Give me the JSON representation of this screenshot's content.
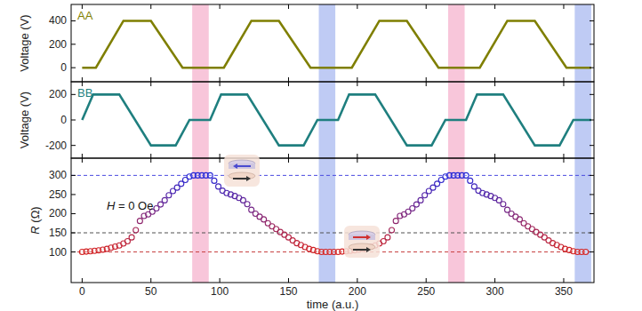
{
  "chart_data": [
    {
      "type": "line",
      "ylabel": "Voltage (V)",
      "annotations": [
        "AA"
      ],
      "tick_labels": "y",
      "xlim": [
        -8,
        372
      ],
      "xticks": [
        0,
        50,
        100,
        150,
        200,
        250,
        300,
        350
      ],
      "ylim": [
        -120,
        540
      ],
      "yticks": [
        0,
        200,
        400
      ],
      "series": [
        {
          "name": "AA",
          "color": "#7f7f00",
          "x": [
            0,
            10,
            30,
            50,
            73,
            103,
            123,
            143,
            166,
            196,
            216,
            236,
            259,
            289,
            309,
            329,
            352,
            370
          ],
          "values": [
            0,
            0,
            400,
            400,
            0,
            0,
            400,
            400,
            0,
            0,
            400,
            400,
            0,
            0,
            400,
            400,
            0,
            0
          ]
        }
      ]
    },
    {
      "type": "line",
      "ylabel": "Voltage (V)",
      "annotations": [
        "BB"
      ],
      "tick_labels": "y",
      "xlim": [
        -8,
        372
      ],
      "xticks": [
        0,
        50,
        100,
        150,
        200,
        250,
        300,
        350
      ],
      "ylim": [
        -300,
        300
      ],
      "yticks": [
        -200,
        0,
        200
      ],
      "series": [
        {
          "name": "BB",
          "color": "#1f7f7f",
          "x": [
            0,
            8,
            27,
            50,
            68,
            78,
            93,
            101,
            120,
            143,
            161,
            171,
            186,
            194,
            213,
            236,
            254,
            264,
            279,
            287,
            306,
            329,
            347,
            357,
            370
          ],
          "values": [
            0,
            200,
            200,
            -200,
            -200,
            0,
            0,
            200,
            200,
            -200,
            -200,
            0,
            0,
            200,
            200,
            -200,
            -200,
            0,
            0,
            200,
            200,
            -200,
            -200,
            0,
            0
          ]
        }
      ]
    },
    {
      "type": "scatter",
      "xlabel": "time (a.u.)",
      "ylabel": "R (Ω)",
      "annotations": [
        "H = 0 Oe"
      ],
      "xlim": [
        -8,
        372
      ],
      "xticks": [
        0,
        50,
        100,
        150,
        200,
        250,
        300,
        350
      ],
      "ylim": [
        20,
        345
      ],
      "yticks": [
        100,
        150,
        200,
        250,
        300
      ],
      "hlines": [
        {
          "value": 300,
          "color": "#4a4ae0"
        },
        {
          "value": 150,
          "color": "#505050"
        },
        {
          "value": 100,
          "color": "#c84040"
        }
      ],
      "bands": [
        {
          "x0": 80,
          "x1": 92,
          "color": "#f7bcd3"
        },
        {
          "x0": 172,
          "x1": 184,
          "color": "#b4c2f2"
        },
        {
          "x0": 266,
          "x1": 278,
          "color": "#f7bcd3"
        },
        {
          "x0": 358,
          "x1": 370,
          "color": "#b4c2f2"
        }
      ],
      "series": [
        {
          "name": "R",
          "marker": "circle",
          "x": [
            0,
            3,
            6,
            9,
            12,
            15,
            18,
            21,
            24,
            27,
            30,
            33,
            36,
            39,
            42,
            45,
            48,
            51,
            54,
            57,
            60,
            63,
            66,
            69,
            72,
            75,
            78,
            81,
            84,
            87,
            90,
            93,
            96,
            99,
            102,
            105,
            108,
            111,
            114,
            117,
            120,
            123,
            126,
            129,
            132,
            135,
            138,
            141,
            144,
            147,
            150,
            153,
            156,
            159,
            162,
            165,
            168,
            171,
            174,
            177,
            180,
            183,
            186,
            189,
            192,
            195,
            198,
            201,
            204,
            207,
            210,
            213,
            216,
            219,
            222,
            225,
            228,
            231,
            234,
            237,
            240,
            243,
            246,
            249,
            252,
            255,
            258,
            261,
            264,
            267,
            270,
            273,
            276,
            279,
            282,
            285,
            288,
            291,
            294,
            297,
            300,
            303,
            306,
            309,
            312,
            315,
            318,
            321,
            324,
            327,
            330,
            333,
            336,
            339,
            342,
            345,
            348,
            351,
            354,
            357,
            360,
            363,
            366
          ],
          "values": [
            100,
            101,
            102,
            103,
            104,
            106,
            108,
            111,
            114,
            117,
            122,
            128,
            138,
            157,
            181,
            194,
            198,
            205,
            214,
            224,
            235,
            248,
            259,
            268,
            278,
            288,
            297,
            300,
            300,
            300,
            300,
            300,
            286,
            271,
            260,
            254,
            250,
            246,
            241,
            235,
            225,
            210,
            200,
            192,
            185,
            175,
            167,
            160,
            152,
            145,
            138,
            130,
            123,
            118,
            113,
            108,
            105,
            102,
            100,
            100,
            100,
            100,
            100,
            101,
            102,
            103,
            104,
            106,
            108,
            111,
            114,
            117,
            122,
            128,
            138,
            157,
            181,
            194,
            198,
            205,
            214,
            224,
            235,
            248,
            259,
            268,
            278,
            288,
            297,
            300,
            300,
            300,
            300,
            300,
            286,
            271,
            260,
            254,
            250,
            246,
            241,
            235,
            225,
            210,
            200,
            192,
            185,
            175,
            167,
            160,
            152,
            145,
            138,
            130,
            123,
            118,
            113,
            108,
            105,
            102,
            100,
            100,
            100
          ]
        }
      ]
    }
  ]
}
